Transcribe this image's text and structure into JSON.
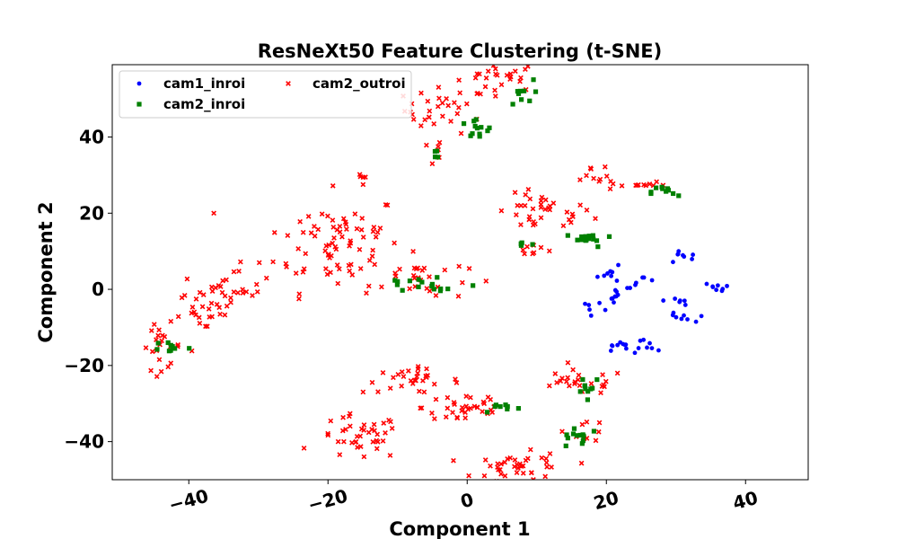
{
  "chart_data": {
    "type": "scatter",
    "title": "ResNeXt50 Feature Clustering (t-SNE)",
    "xlabel": "Component 1",
    "ylabel": "Component 2",
    "xlim": [
      -51,
      49
    ],
    "ylim": [
      -50,
      59
    ],
    "xticks": [
      -40,
      -20,
      0,
      20,
      40
    ],
    "yticks": [
      -40,
      -20,
      0,
      20,
      40
    ],
    "xtick_labels": [
      "−40",
      "−20",
      "0",
      "20",
      "40"
    ],
    "ytick_labels": [
      "−40",
      "−20",
      "0",
      "20",
      "40"
    ],
    "xtick_rotation_deg": 15,
    "grid": false,
    "legend_position": "top-left",
    "legend_columns": 2,
    "series": [
      {
        "name": "cam1_inroi",
        "color": "#0000ff",
        "marker": "circle",
        "clusters": [
          {
            "center": [
              21,
              4
            ],
            "spread": [
              1.2,
              1.0
            ],
            "count": 8
          },
          {
            "center": [
              25,
              2
            ],
            "spread": [
              1.2,
              0.8
            ],
            "count": 7
          },
          {
            "center": [
              31,
              8.5
            ],
            "spread": [
              1.0,
              1.0
            ],
            "count": 8
          },
          {
            "center": [
              21,
              -1.5
            ],
            "spread": [
              1.0,
              0.8
            ],
            "count": 8
          },
          {
            "center": [
              18.5,
              -4.5
            ],
            "spread": [
              1.2,
              0.6
            ],
            "count": 6
          },
          {
            "center": [
              30.5,
              -3
            ],
            "spread": [
              1.0,
              0.6
            ],
            "count": 6
          },
          {
            "center": [
              30.5,
              -7.5
            ],
            "spread": [
              1.0,
              0.6
            ],
            "count": 8
          },
          {
            "center": [
              21.5,
              -15
            ],
            "spread": [
              1.0,
              1.0
            ],
            "count": 9
          },
          {
            "center": [
              25.5,
              -15
            ],
            "spread": [
              1.2,
              1.0
            ],
            "count": 8
          },
          {
            "center": [
              36,
              0.7
            ],
            "spread": [
              1.0,
              0.5
            ],
            "count": 8
          }
        ]
      },
      {
        "name": "cam2_inroi",
        "color": "#008000",
        "marker": "square",
        "clusters": [
          {
            "center": [
              7.5,
              51
            ],
            "spread": [
              1.0,
              2.0
            ],
            "count": 9
          },
          {
            "center": [
              1,
              42
            ],
            "spread": [
              1.5,
              1.6
            ],
            "count": 12
          },
          {
            "center": [
              -4.5,
              35
            ],
            "spread": [
              0.3,
              0.8
            ],
            "count": 4
          },
          {
            "center": [
              28.5,
              25.5
            ],
            "spread": [
              1.0,
              1.0
            ],
            "count": 10
          },
          {
            "center": [
              17.5,
              13
            ],
            "spread": [
              1.8,
              1.0
            ],
            "count": 14
          },
          {
            "center": [
              8,
              12
            ],
            "spread": [
              0.8,
              0.5
            ],
            "count": 4
          },
          {
            "center": [
              -6,
              1
            ],
            "spread": [
              4.0,
              1.6
            ],
            "count": 16
          },
          {
            "center": [
              -42.5,
              -15
            ],
            "spread": [
              1.2,
              0.8
            ],
            "count": 9
          },
          {
            "center": [
              5,
              -31
            ],
            "spread": [
              1.5,
              0.8
            ],
            "count": 8
          },
          {
            "center": [
              17.5,
              -25
            ],
            "spread": [
              1.0,
              1.4
            ],
            "count": 10
          },
          {
            "center": [
              16,
              -38.5
            ],
            "spread": [
              1.5,
              1.6
            ],
            "count": 12
          }
        ]
      },
      {
        "name": "cam2_outroi",
        "color": "#ff0000",
        "marker": "x",
        "clusters": [
          {
            "center": [
              5,
              56
            ],
            "spread": [
              3.0,
              2.0
            ],
            "count": 24
          },
          {
            "center": [
              -3,
              47
            ],
            "spread": [
              3.0,
              3.0
            ],
            "count": 32
          },
          {
            "center": [
              -5,
              36
            ],
            "spread": [
              1.2,
              2.0
            ],
            "count": 6
          },
          {
            "center": [
              -15.5,
              29.5
            ],
            "spread": [
              0.6,
              0.4
            ],
            "count": 4
          },
          {
            "center": [
              11,
              20
            ],
            "spread": [
              3.5,
              2.5
            ],
            "count": 36
          },
          {
            "center": [
              18.5,
              31
            ],
            "spread": [
              1.2,
              1.5
            ],
            "count": 8
          },
          {
            "center": [
              24,
              27.5
            ],
            "spread": [
              2.2,
              0.8
            ],
            "count": 14
          },
          {
            "center": [
              -19,
              12.5
            ],
            "spread": [
              5.0,
              6.5
            ],
            "count": 80
          },
          {
            "center": [
              -7,
              3
            ],
            "spread": [
              3.5,
              3.0
            ],
            "count": 26
          },
          {
            "center": [
              -33,
              2
            ],
            "spread": [
              2.5,
              3.0
            ],
            "count": 24
          },
          {
            "center": [
              -37.5,
              -6
            ],
            "spread": [
              2.0,
              3.0
            ],
            "count": 26
          },
          {
            "center": [
              -44,
              -15
            ],
            "spread": [
              1.5,
              3.0
            ],
            "count": 22
          },
          {
            "center": [
              -8,
              -24
            ],
            "spread": [
              3.5,
              1.6
            ],
            "count": 30
          },
          {
            "center": [
              0,
              -31
            ],
            "spread": [
              3.2,
              2.5
            ],
            "count": 34
          },
          {
            "center": [
              16,
              -24.5
            ],
            "spread": [
              3.5,
              1.6
            ],
            "count": 24
          },
          {
            "center": [
              -15.5,
              -39
            ],
            "spread": [
              3.0,
              3.0
            ],
            "count": 40
          },
          {
            "center": [
              8,
              -47
            ],
            "spread": [
              3.5,
              2.0
            ],
            "count": 40
          },
          {
            "center": [
              9.5,
              11
            ],
            "spread": [
              1.5,
              1.2
            ],
            "count": 8
          },
          {
            "center": [
              17,
              -37
            ],
            "spread": [
              1.5,
              1.5
            ],
            "count": 10
          }
        ]
      }
    ]
  }
}
